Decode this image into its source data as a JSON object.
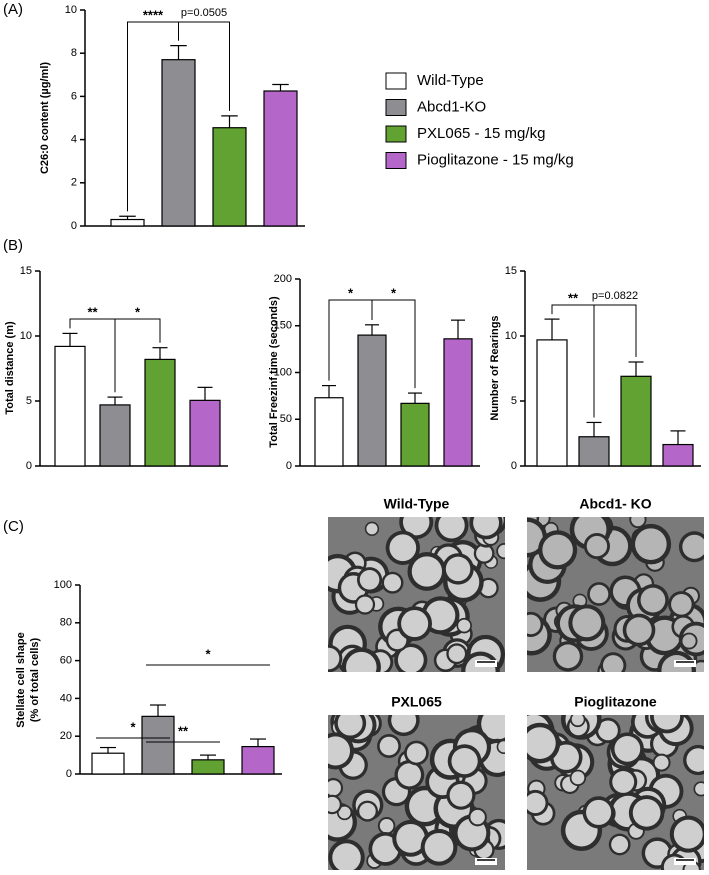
{
  "chart_data": [
    {
      "type": "bar",
      "panel": "(A)",
      "ylabel": [
        "C26:0 content (µg/ml)"
      ],
      "categories": [
        "Wild-Type",
        "Abcd1-KO",
        "PXL065 - 15 mg/kg",
        "Pioglitazone - 15 mg/kg"
      ],
      "colors": [
        "#ffffff",
        "#8e8e92",
        "#62a232",
        "#b467c8"
      ],
      "values": [
        0.3,
        7.7,
        4.55,
        6.25
      ],
      "errors": [
        0.15,
        0.65,
        0.55,
        0.3
      ],
      "ylim": [
        0,
        10
      ],
      "yticks": [
        0,
        2,
        4,
        6,
        8,
        10
      ],
      "legend": "right",
      "annotations": [
        {
          "text": "****",
          "from": 0,
          "to": 1,
          "style": "bracket"
        },
        {
          "text": "p=0.0505",
          "from": 1,
          "to": 2,
          "style": "bracket"
        }
      ]
    },
    {
      "type": "bar",
      "panel": "(B)",
      "ylabel": [
        "Total distance (m)"
      ],
      "colors": [
        "#ffffff",
        "#8e8e92",
        "#62a232",
        "#b467c8"
      ],
      "values": [
        9.2,
        4.7,
        8.2,
        5.05
      ],
      "errors": [
        1.0,
        0.6,
        0.9,
        1.0
      ],
      "ylim": [
        0,
        15
      ],
      "yticks": [
        0,
        5,
        10,
        15
      ],
      "annotations": [
        {
          "text": "**",
          "from": 0,
          "to": 1,
          "style": "bracket"
        },
        {
          "text": "*",
          "from": 1,
          "to": 2,
          "style": "bracket"
        }
      ]
    },
    {
      "type": "bar",
      "ylabel": [
        "Total Freezinf time (seconds)"
      ],
      "colors": [
        "#ffffff",
        "#8e8e92",
        "#62a232",
        "#b467c8"
      ],
      "values": [
        73,
        140,
        67,
        136
      ],
      "errors": [
        13,
        11,
        11,
        20
      ],
      "ylim": [
        0,
        200
      ],
      "yticks": [
        0,
        50,
        100,
        150,
        200
      ],
      "annotations": [
        {
          "text": "*",
          "from": 0,
          "to": 1,
          "style": "bracket"
        },
        {
          "text": "*",
          "from": 1,
          "to": 2,
          "style": "bracket"
        }
      ]
    },
    {
      "type": "bar",
      "ylabel": [
        "Number of Rearings"
      ],
      "colors": [
        "#ffffff",
        "#8e8e92",
        "#62a232",
        "#b467c8"
      ],
      "values": [
        9.7,
        2.25,
        6.9,
        1.65
      ],
      "errors": [
        1.6,
        1.1,
        1.1,
        1.05
      ],
      "ylim": [
        0,
        15
      ],
      "yticks": [
        0,
        5,
        10,
        15
      ],
      "annotations": [
        {
          "text": "**",
          "from": 0,
          "to": 1,
          "style": "bracket"
        },
        {
          "text": "p=0.0822",
          "from": 1,
          "to": 2,
          "style": "bracket"
        }
      ]
    },
    {
      "type": "bar",
      "panel": "(C)",
      "ylabel": [
        "Stellate cell shape",
        "(% of total cells)"
      ],
      "colors": [
        "#ffffff",
        "#8e8e92",
        "#62a232",
        "#b467c8"
      ],
      "values": [
        11,
        30.5,
        7.5,
        14.5
      ],
      "errors": [
        3,
        6,
        2.5,
        4
      ],
      "ylim": [
        0,
        100
      ],
      "yticks": [
        0,
        20,
        40,
        60,
        80,
        100
      ],
      "annotations": [
        {
          "text": "*",
          "from": 0,
          "to": 1,
          "style": "line"
        },
        {
          "text": "**",
          "from": 1,
          "to": 2,
          "style": "line"
        },
        {
          "text": "*",
          "from": 1,
          "to": 3,
          "style": "line"
        }
      ]
    }
  ],
  "micrographs": [
    {
      "title": "Wild-Type"
    },
    {
      "title": "Abcd1- KO"
    },
    {
      "title": "PXL065"
    },
    {
      "title": "Pioglitazone"
    }
  ]
}
